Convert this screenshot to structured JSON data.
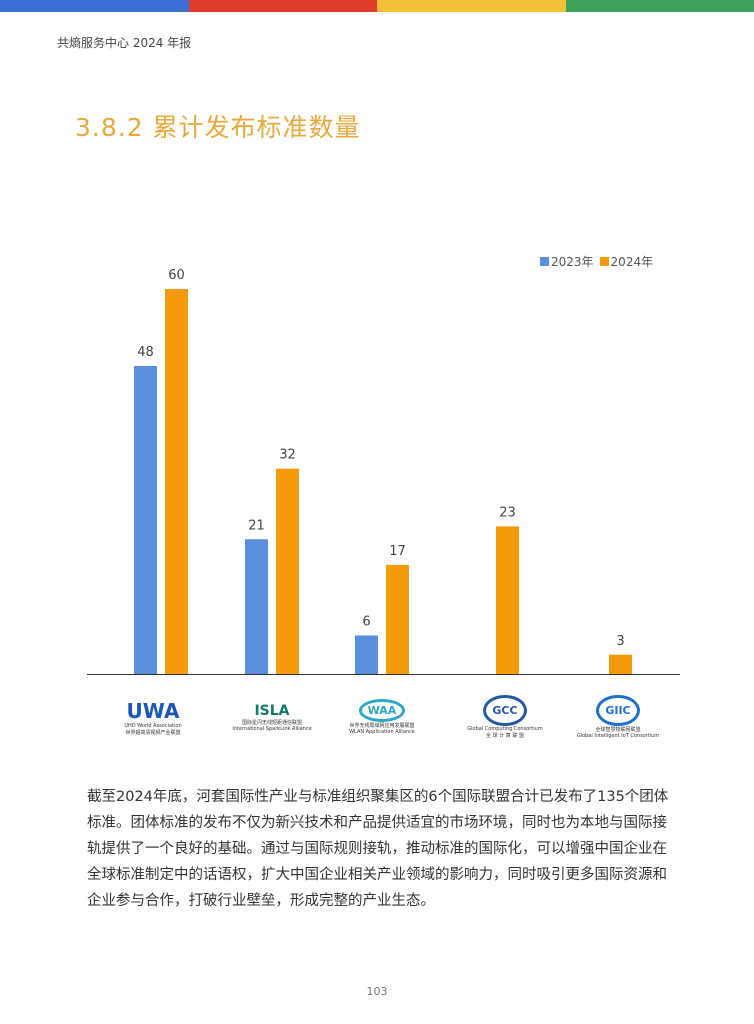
{
  "top_bar_colors": [
    "#3b6fd6",
    "#e03c2c",
    "#f0c038",
    "#3ea05a"
  ],
  "header": {
    "text": "共熵服务中心 2024 年报"
  },
  "section": {
    "title": "3.8.2 累计发布标准数量"
  },
  "chart_data": {
    "type": "bar",
    "categories": [
      "UWA",
      "ISLA",
      "WAA",
      "Global Computing Consortium",
      "Global Intelligent IoT Consortium"
    ],
    "series": [
      {
        "name": "2023年",
        "color": "#5b8fdd",
        "values": [
          48,
          21,
          6,
          null,
          null
        ]
      },
      {
        "name": "2024年",
        "color": "#f59a0a",
        "values": [
          60,
          32,
          17,
          23,
          3
        ]
      }
    ],
    "ylim": [
      0,
      60
    ],
    "legend": "top-right",
    "grid": false
  },
  "logos": [
    {
      "mark": "UWA",
      "caption1": "UHD World Association",
      "caption2": "世界超高清视频产业联盟",
      "color": "#1a57b8"
    },
    {
      "mark": "ISLA",
      "caption1": "国际星闪无线短距通信联盟",
      "caption2": "International SparkLink Alliance",
      "color": "#0f7b6c"
    },
    {
      "mark": "WAA",
      "caption1": "世界无线局域网应用发展联盟",
      "caption2": "WLAN Application Alliance",
      "color": "#2aa7c9"
    },
    {
      "mark": "GCC",
      "caption1": "Global Computing Consortium",
      "caption2": "全 球 计 算 联 盟",
      "color": "#2457a8"
    },
    {
      "mark": "GIIC",
      "caption1": "全球智慧物联网联盟",
      "caption2": "Global Intelligent IoT Consortium",
      "color": "#1f6fd0"
    }
  ],
  "paragraph": "截至2024年底，河套国际性产业与标准组织聚集区的6个国际联盟合计已发布了135个团体标准。团体标准的发布不仅为新兴技术和产品提供适宜的市场环境，同时也为本地与国际接轨提供了一个良好的基础。通过与国际规则接轨，推动标准的国际化，可以增强中国企业在全球标准制定中的话语权，扩大中国企业相关产业领域的影响力，同时吸引更多国际资源和企业参与合作，打破行业壁垒，形成完整的产业生态。",
  "page_number": "103"
}
